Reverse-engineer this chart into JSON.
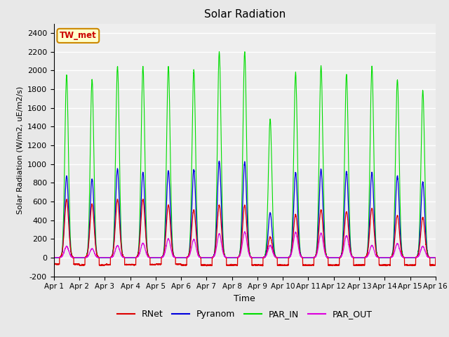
{
  "title": "Solar Radiation",
  "ylabel": "Solar Radiation (W/m2, uE/m2/s)",
  "xlabel": "Time",
  "ylim": [
    -200,
    2500
  ],
  "yticks": [
    -200,
    0,
    200,
    400,
    600,
    800,
    1000,
    1200,
    1400,
    1600,
    1800,
    2000,
    2200,
    2400
  ],
  "xtick_labels": [
    "Apr 1",
    "Apr 2",
    "Apr 3",
    "Apr 4",
    "Apr 5",
    "Apr 6",
    "Apr 7",
    "Apr 8",
    "Apr 9",
    "Apr 10",
    "Apr 11",
    "Apr 12",
    "Apr 13",
    "Apr 14",
    "Apr 15",
    "Apr 16"
  ],
  "colors": {
    "RNet": "#dd0000",
    "Pyranom": "#0000dd",
    "PAR_IN": "#00dd00",
    "PAR_OUT": "#dd00dd"
  },
  "station_label": "TW_met",
  "station_box_facecolor": "#ffffcc",
  "station_box_edgecolor": "#cc8800",
  "background_color": "#e8e8e8",
  "plot_bg_color": "#eeeeee",
  "grid_color": "#ffffff",
  "n_days": 15,
  "peak_PAR_IN": [
    1950,
    1900,
    2040,
    2040,
    2040,
    2000,
    2200,
    2200,
    1480,
    1970,
    2040,
    1960,
    2040,
    1900,
    1780
  ],
  "peak_Pyranom": [
    870,
    840,
    950,
    910,
    930,
    940,
    1030,
    1020,
    480,
    910,
    940,
    920,
    910,
    870,
    810
  ],
  "peak_RNet": [
    620,
    570,
    620,
    620,
    560,
    510,
    560,
    560,
    220,
    460,
    510,
    490,
    525,
    450,
    430
  ],
  "peak_PAR_OUT": [
    120,
    95,
    130,
    155,
    200,
    195,
    255,
    275,
    130,
    270,
    260,
    235,
    130,
    150,
    120
  ],
  "night_RNet": [
    -70,
    -80,
    -75,
    -75,
    -70,
    -80,
    -80,
    -80,
    -80,
    -80,
    -80,
    -80,
    -80,
    -80,
    -80
  ],
  "night_PAR_OUT": 2
}
